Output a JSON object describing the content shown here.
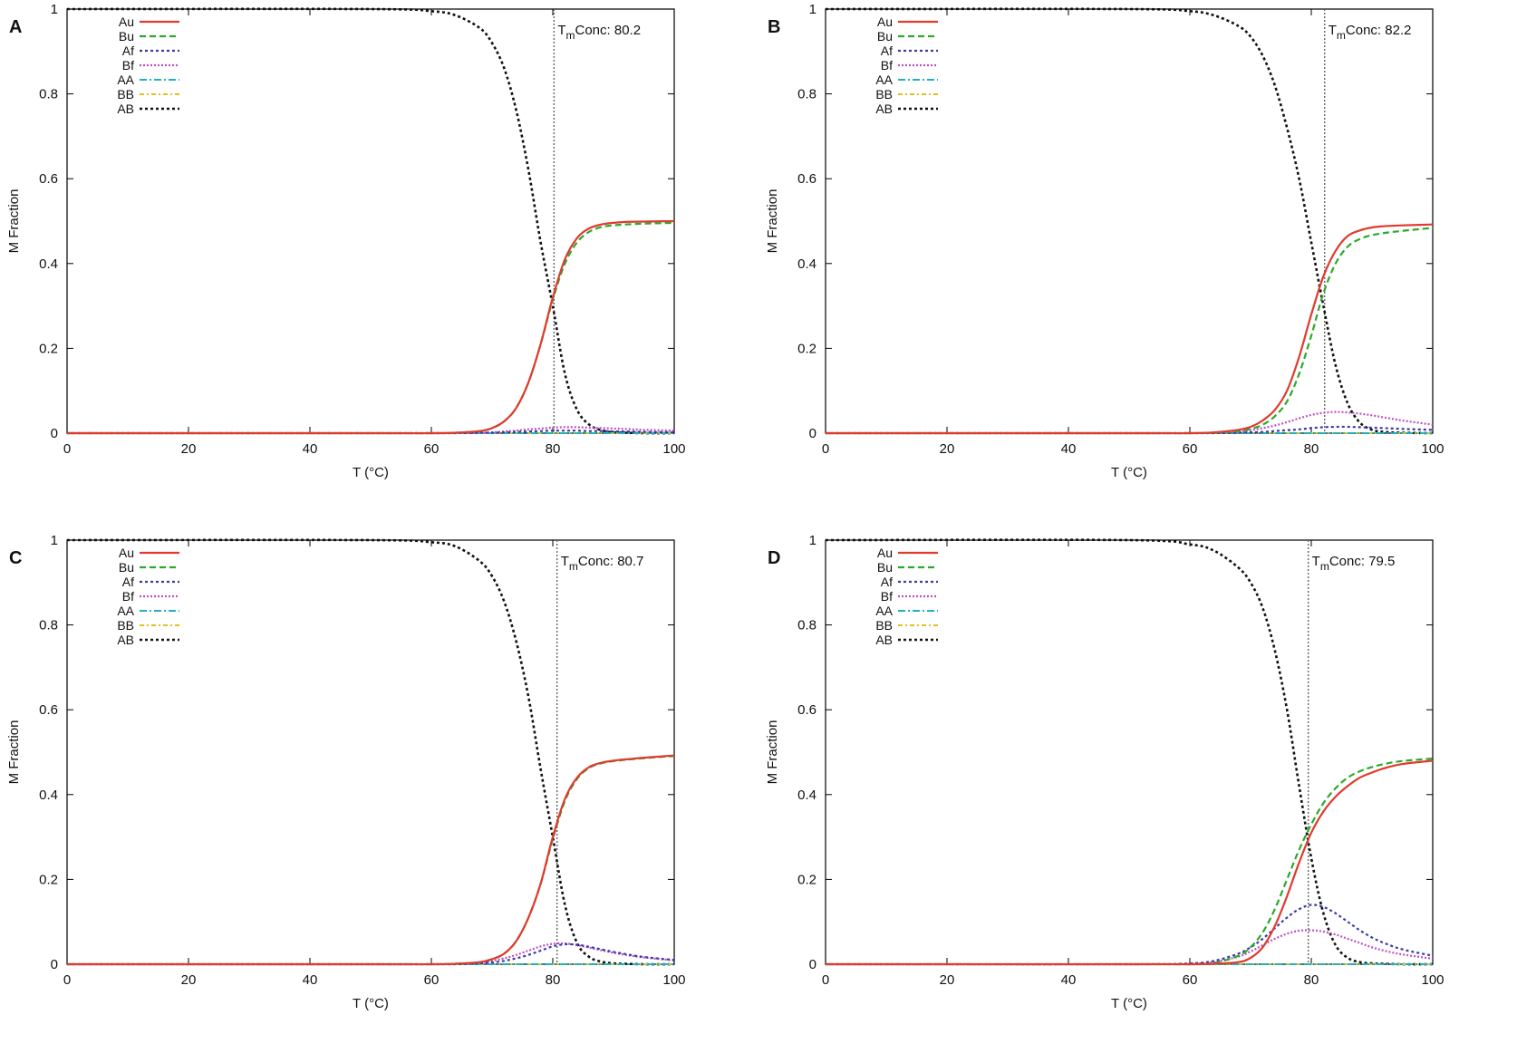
{
  "figure": {
    "colors": {
      "Au": "#e03a2e",
      "Bu": "#2aaa2a",
      "Af": "#3a3aaa",
      "Bf": "#c050c0",
      "AA": "#20b0c0",
      "BB": "#e0c020",
      "AB": "#111111",
      "tm_line": "#666666",
      "axis": "#000000"
    }
  },
  "chart_data": [
    {
      "panel": "A",
      "type": "line",
      "xlabel": "T (°C)",
      "ylabel": "M Fraction",
      "xlim": [
        0,
        100
      ],
      "ylim": [
        0,
        1
      ],
      "xticks": [
        "0",
        "20",
        "40",
        "60",
        "80",
        "100"
      ],
      "yticks": [
        "0",
        "0.2",
        "0.4",
        "0.6",
        "0.8",
        "1"
      ],
      "grid": false,
      "legend_position": "top-left",
      "tm_label": "Conc: 80.2",
      "tm_subscript": "m",
      "tm_prefix": "T",
      "tm_value": 80.2,
      "x": [
        0,
        50,
        60,
        64,
        68,
        70,
        72,
        74,
        76,
        78,
        80,
        82,
        84,
        86,
        88,
        90,
        92,
        95,
        100
      ],
      "series": [
        {
          "name": "Au",
          "values": [
            0,
            0,
            0,
            0.001,
            0.005,
            0.012,
            0.028,
            0.06,
            0.12,
            0.21,
            0.32,
            0.41,
            0.46,
            0.483,
            0.492,
            0.496,
            0.498,
            0.499,
            0.5
          ]
        },
        {
          "name": "Bu",
          "values": [
            0,
            0,
            0,
            0.001,
            0.005,
            0.012,
            0.028,
            0.06,
            0.12,
            0.21,
            0.315,
            0.4,
            0.45,
            0.475,
            0.486,
            0.49,
            0.492,
            0.494,
            0.496
          ]
        },
        {
          "name": "Af",
          "values": [
            0,
            0,
            0,
            0,
            0.001,
            0.001,
            0.002,
            0.003,
            0.004,
            0.005,
            0.006,
            0.006,
            0.006,
            0.005,
            0.005,
            0.004,
            0.004,
            0.003,
            0.002
          ]
        },
        {
          "name": "Bf",
          "values": [
            0,
            0,
            0,
            0,
            0.001,
            0.002,
            0.004,
            0.006,
            0.009,
            0.011,
            0.013,
            0.014,
            0.014,
            0.013,
            0.012,
            0.011,
            0.01,
            0.008,
            0.006
          ]
        },
        {
          "name": "AA",
          "values": [
            0,
            0,
            0,
            0,
            0,
            0,
            0,
            0,
            0,
            0,
            0,
            0,
            0,
            0,
            0,
            0,
            0,
            0,
            0
          ]
        },
        {
          "name": "BB",
          "values": [
            0,
            0,
            0,
            0,
            0,
            0,
            0,
            0,
            0,
            0,
            0,
            0,
            0,
            0,
            0,
            0,
            0,
            0,
            0
          ]
        },
        {
          "name": "AB",
          "values": [
            1,
            1,
            0.995,
            0.985,
            0.955,
            0.92,
            0.86,
            0.76,
            0.62,
            0.45,
            0.3,
            0.14,
            0.055,
            0.02,
            0.007,
            0.002,
            0.001,
            0,
            0
          ]
        }
      ]
    },
    {
      "panel": "B",
      "type": "line",
      "xlabel": "T (°C)",
      "ylabel": "M Fraction",
      "xlim": [
        0,
        100
      ],
      "ylim": [
        0,
        1
      ],
      "xticks": [
        "0",
        "20",
        "40",
        "60",
        "80",
        "100"
      ],
      "yticks": [
        "0",
        "0.2",
        "0.4",
        "0.6",
        "0.8",
        "1"
      ],
      "grid": false,
      "legend_position": "top-left",
      "tm_label": "Conc: 82.2",
      "tm_subscript": "m",
      "tm_prefix": "T",
      "tm_value": 82.2,
      "x": [
        0,
        50,
        60,
        64,
        68,
        70,
        72,
        74,
        76,
        78,
        80,
        82,
        84,
        86,
        88,
        90,
        92,
        95,
        100
      ],
      "series": [
        {
          "name": "Au",
          "values": [
            0,
            0,
            0,
            0.002,
            0.008,
            0.015,
            0.03,
            0.055,
            0.1,
            0.18,
            0.28,
            0.37,
            0.43,
            0.465,
            0.478,
            0.485,
            0.488,
            0.49,
            0.492
          ]
        },
        {
          "name": "Bu",
          "values": [
            0,
            0,
            0,
            0.001,
            0.005,
            0.01,
            0.02,
            0.04,
            0.075,
            0.14,
            0.23,
            0.33,
            0.4,
            0.44,
            0.458,
            0.467,
            0.472,
            0.477,
            0.484
          ]
        },
        {
          "name": "Af",
          "values": [
            0,
            0,
            0,
            0,
            0.001,
            0.002,
            0.003,
            0.005,
            0.007,
            0.009,
            0.012,
            0.014,
            0.015,
            0.015,
            0.014,
            0.013,
            0.012,
            0.01,
            0.008
          ]
        },
        {
          "name": "Bf",
          "values": [
            0,
            0,
            0,
            0.001,
            0.004,
            0.007,
            0.012,
            0.018,
            0.026,
            0.035,
            0.043,
            0.048,
            0.05,
            0.049,
            0.046,
            0.042,
            0.037,
            0.03,
            0.02
          ]
        },
        {
          "name": "AA",
          "values": [
            0,
            0,
            0,
            0,
            0,
            0,
            0,
            0,
            0,
            0,
            0,
            0,
            0,
            0,
            0,
            0,
            0,
            0,
            0
          ]
        },
        {
          "name": "BB",
          "values": [
            0,
            0,
            0,
            0,
            0,
            0,
            0,
            0,
            0,
            0,
            0,
            0,
            0,
            0,
            0,
            0,
            0,
            0,
            0
          ]
        },
        {
          "name": "AB",
          "values": [
            1,
            1,
            0.995,
            0.985,
            0.96,
            0.935,
            0.89,
            0.82,
            0.72,
            0.6,
            0.45,
            0.3,
            0.16,
            0.07,
            0.025,
            0.008,
            0.003,
            0.001,
            0
          ]
        }
      ]
    },
    {
      "panel": "C",
      "type": "line",
      "xlabel": "T (°C)",
      "ylabel": "M Fraction",
      "xlim": [
        0,
        100
      ],
      "ylim": [
        0,
        1
      ],
      "xticks": [
        "0",
        "20",
        "40",
        "60",
        "80",
        "100"
      ],
      "yticks": [
        "0",
        "0.2",
        "0.4",
        "0.6",
        "0.8",
        "1"
      ],
      "grid": false,
      "legend_position": "top-left",
      "tm_label": "Conc: 80.7",
      "tm_subscript": "m",
      "tm_prefix": "T",
      "tm_value": 80.7,
      "x": [
        0,
        50,
        60,
        64,
        68,
        70,
        72,
        74,
        76,
        78,
        80,
        82,
        84,
        86,
        88,
        90,
        92,
        95,
        100
      ],
      "series": [
        {
          "name": "Au",
          "values": [
            0,
            0,
            0,
            0.001,
            0.005,
            0.012,
            0.025,
            0.055,
            0.11,
            0.19,
            0.3,
            0.39,
            0.44,
            0.465,
            0.475,
            0.48,
            0.483,
            0.487,
            0.492
          ]
        },
        {
          "name": "Bu",
          "values": [
            0,
            0,
            0,
            0.001,
            0.005,
            0.012,
            0.025,
            0.055,
            0.11,
            0.19,
            0.295,
            0.385,
            0.437,
            0.463,
            0.474,
            0.479,
            0.482,
            0.486,
            0.491
          ]
        },
        {
          "name": "Af",
          "values": [
            0,
            0,
            0,
            0,
            0.002,
            0.004,
            0.008,
            0.014,
            0.022,
            0.032,
            0.042,
            0.047,
            0.046,
            0.041,
            0.035,
            0.029,
            0.024,
            0.017,
            0.01
          ]
        },
        {
          "name": "Bf",
          "values": [
            0,
            0,
            0,
            0.001,
            0.004,
            0.008,
            0.014,
            0.022,
            0.032,
            0.042,
            0.048,
            0.049,
            0.045,
            0.039,
            0.033,
            0.027,
            0.022,
            0.016,
            0.009
          ]
        },
        {
          "name": "AA",
          "values": [
            0,
            0,
            0,
            0,
            0,
            0,
            0,
            0,
            0,
            0,
            0,
            0,
            0,
            0,
            0,
            0,
            0,
            0,
            0
          ]
        },
        {
          "name": "BB",
          "values": [
            0,
            0,
            0,
            0,
            0,
            0,
            0,
            0,
            0,
            0,
            0,
            0,
            0,
            0,
            0,
            0,
            0,
            0,
            0
          ]
        },
        {
          "name": "AB",
          "values": [
            1,
            1,
            0.995,
            0.985,
            0.95,
            0.915,
            0.855,
            0.76,
            0.63,
            0.46,
            0.3,
            0.14,
            0.05,
            0.017,
            0.006,
            0.002,
            0.001,
            0,
            0
          ]
        }
      ]
    },
    {
      "panel": "D",
      "type": "line",
      "xlabel": "T (°C)",
      "ylabel": "M Fraction",
      "xlim": [
        0,
        100
      ],
      "ylim": [
        0,
        1
      ],
      "xticks": [
        "0",
        "20",
        "40",
        "60",
        "80",
        "100"
      ],
      "yticks": [
        "0",
        "0.2",
        "0.4",
        "0.6",
        "0.8",
        "1"
      ],
      "grid": false,
      "legend_position": "top-left",
      "tm_label": "Conc: 79.5",
      "tm_subscript": "m",
      "tm_prefix": "T",
      "tm_value": 79.5,
      "x": [
        0,
        50,
        60,
        64,
        68,
        70,
        72,
        74,
        76,
        78,
        80,
        82,
        84,
        86,
        88,
        90,
        92,
        95,
        100
      ],
      "series": [
        {
          "name": "Au",
          "values": [
            0,
            0,
            0,
            0.001,
            0.005,
            0.015,
            0.04,
            0.09,
            0.16,
            0.24,
            0.31,
            0.36,
            0.395,
            0.42,
            0.44,
            0.452,
            0.462,
            0.472,
            0.48
          ]
        },
        {
          "name": "Bu",
          "values": [
            0,
            0,
            0,
            0.003,
            0.02,
            0.04,
            0.075,
            0.13,
            0.2,
            0.27,
            0.33,
            0.38,
            0.415,
            0.44,
            0.455,
            0.465,
            0.472,
            0.479,
            0.485
          ]
        },
        {
          "name": "Af",
          "values": [
            0,
            0,
            0.002,
            0.008,
            0.025,
            0.04,
            0.06,
            0.085,
            0.11,
            0.13,
            0.14,
            0.135,
            0.12,
            0.1,
            0.08,
            0.063,
            0.05,
            0.035,
            0.02
          ]
        },
        {
          "name": "Bf",
          "values": [
            0,
            0,
            0.001,
            0.005,
            0.018,
            0.03,
            0.045,
            0.06,
            0.072,
            0.079,
            0.08,
            0.077,
            0.07,
            0.06,
            0.05,
            0.04,
            0.032,
            0.023,
            0.013
          ]
        },
        {
          "name": "AA",
          "values": [
            0,
            0,
            0,
            0,
            0,
            0,
            0,
            0,
            0,
            0,
            0,
            0,
            0,
            0,
            0,
            0,
            0,
            0,
            0
          ]
        },
        {
          "name": "BB",
          "values": [
            0,
            0,
            0,
            0,
            0,
            0,
            0,
            0,
            0,
            0,
            0,
            0,
            0,
            0,
            0,
            0,
            0,
            0,
            0
          ]
        },
        {
          "name": "AB",
          "values": [
            1,
            1,
            0.99,
            0.975,
            0.935,
            0.9,
            0.84,
            0.74,
            0.6,
            0.42,
            0.25,
            0.12,
            0.045,
            0.015,
            0.005,
            0.002,
            0.001,
            0,
            0
          ]
        }
      ]
    }
  ]
}
